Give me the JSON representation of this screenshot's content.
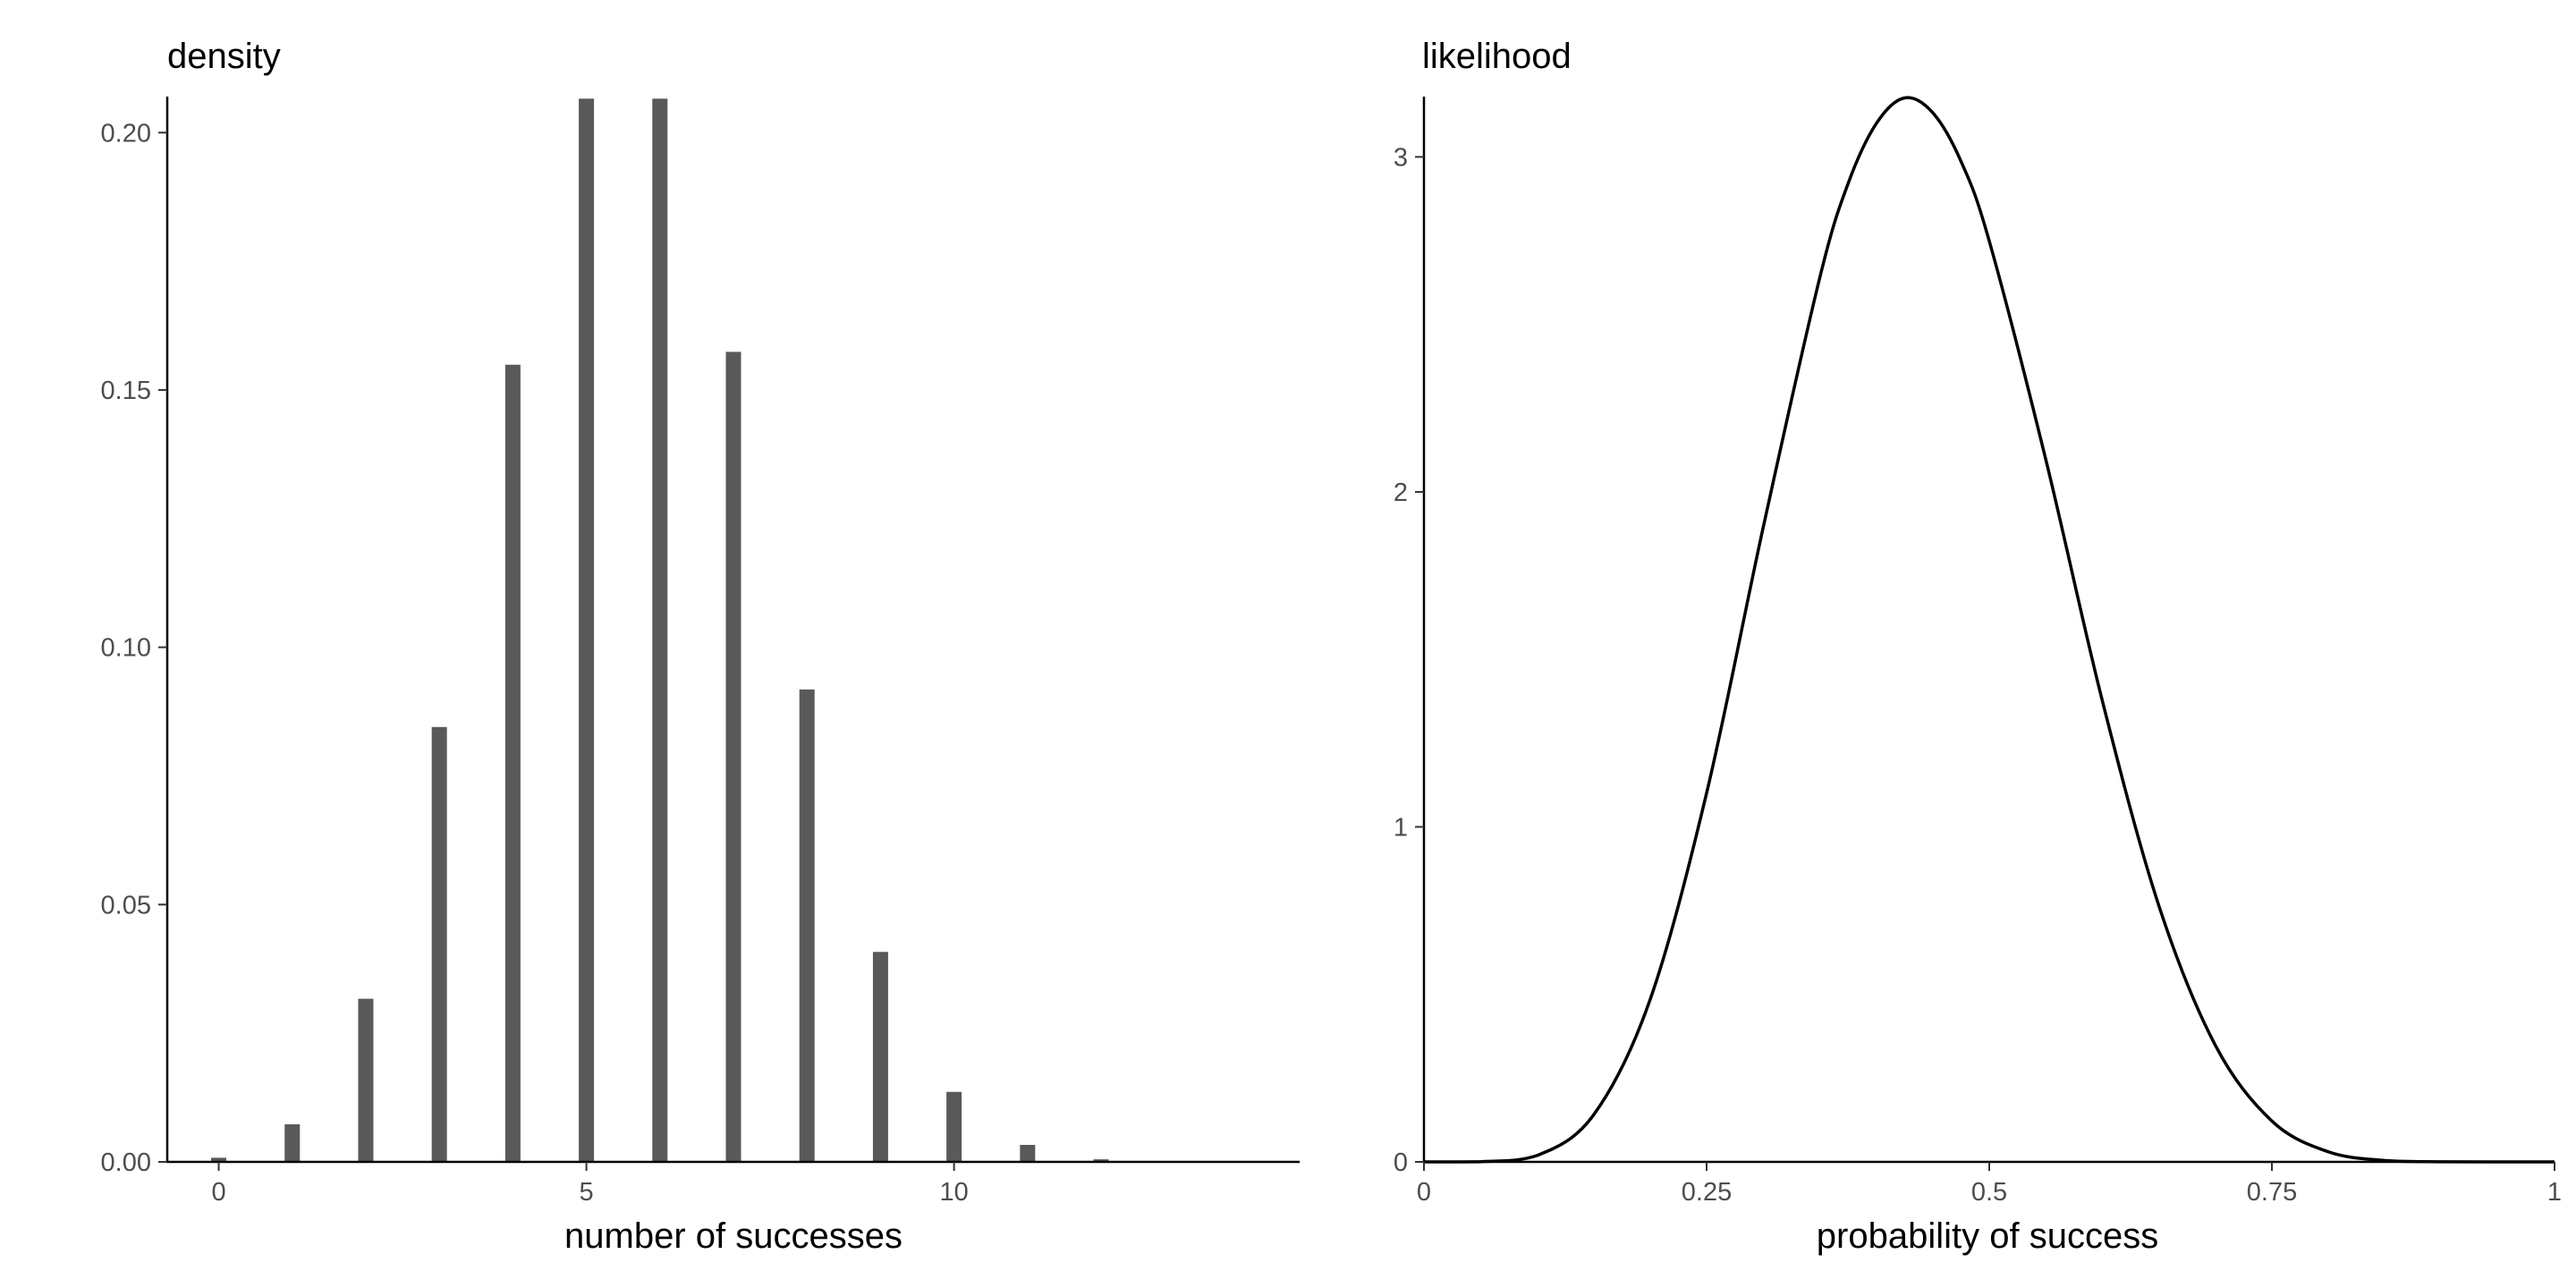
{
  "chart_data": [
    {
      "type": "bar",
      "title": "density",
      "xlabel": "number of successes",
      "ylabel": "",
      "x": [
        0,
        1,
        2,
        3,
        4,
        5,
        6,
        7,
        8,
        9,
        10,
        11,
        12,
        13,
        14
      ],
      "values": [
        0.0008,
        0.0073,
        0.0317,
        0.0845,
        0.1549,
        0.2066,
        0.2066,
        0.1574,
        0.0918,
        0.0408,
        0.0136,
        0.0033,
        0.0005,
        3e-05,
        3e-06
      ],
      "xlim": [
        -0.7,
        14.7
      ],
      "ylim": [
        0,
        0.207
      ],
      "xticks": [
        "0",
        "5",
        "10"
      ],
      "yticks": [
        "0.00",
        "0.05",
        "0.10",
        "0.15",
        "0.20"
      ],
      "grid": false,
      "bar_color": "#595959"
    },
    {
      "type": "line",
      "title": "likelihood",
      "xlabel": "probability of success",
      "ylabel": "",
      "x": [
        0,
        0.05,
        0.1,
        0.15,
        0.2,
        0.25,
        0.3,
        0.35,
        0.375,
        0.4,
        0.425,
        0.45,
        0.475,
        0.5,
        0.55,
        0.6,
        0.65,
        0.7,
        0.75,
        0.8,
        0.85,
        0.9,
        0.95,
        1
      ],
      "y": [
        0,
        0.0005,
        0.019,
        0.14,
        0.484,
        1.101,
        1.893,
        2.638,
        2.919,
        3.099,
        3.176,
        3.132,
        2.987,
        2.749,
        2.097,
        1.377,
        0.765,
        0.348,
        0.122,
        0.03,
        0.004,
        0.0002,
        0,
        0
      ],
      "xlim": [
        0,
        1
      ],
      "ylim": [
        0,
        3.18
      ],
      "xticks": [
        "0",
        "0.25",
        "0.5",
        "0.75",
        "1"
      ],
      "yticks": [
        "0",
        "1",
        "2",
        "3"
      ],
      "grid": false,
      "line_color": "#000000"
    }
  ]
}
